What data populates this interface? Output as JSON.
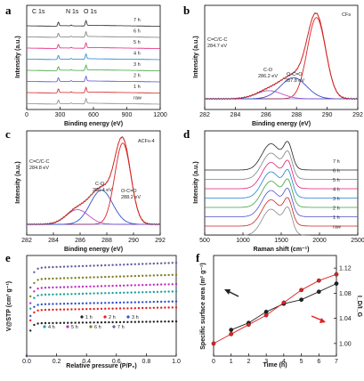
{
  "chart_data": [
    {
      "panel": "a",
      "type": "line",
      "xlabel": "Binding energy (eV)",
      "ylabel": "Intensity (a.u.)",
      "xlim": [
        0,
        1200
      ],
      "xticks": [
        "0",
        "300",
        "600",
        "900",
        "1200"
      ],
      "peak_labels": [
        "C 1s",
        "N 1s",
        "O 1s"
      ],
      "peaks_eV": [
        284.8,
        400,
        532
      ],
      "series_names": [
        "7 h",
        "6 h",
        "5 h",
        "4 h",
        "3 h",
        "2 h",
        "1 h",
        "raw"
      ],
      "colors": [
        "#222222",
        "#7a7a7a",
        "#e0207a",
        "#2080d0",
        "#40a040",
        "#5050d0",
        "#d02020",
        "#888888"
      ]
    },
    {
      "panel": "b",
      "type": "line",
      "title": "CFs",
      "xlabel": "Binding energy (eV)",
      "ylabel": "Intensity (a.u.)",
      "xlim": [
        292,
        282
      ],
      "xticks": [
        "282",
        "284",
        "286",
        "288",
        "290",
        "292"
      ],
      "components": [
        {
          "name": "C=C/C-C",
          "center_eV": 284.7,
          "label": "284.7 eV",
          "amplitude": 1.0,
          "color": "#e02020"
        },
        {
          "name": "C-O",
          "center_eV": 286.2,
          "label": "286.2 eV",
          "amplitude": 0.26,
          "color": "#3050d0"
        },
        {
          "name": "O-C=O",
          "center_eV": 287.8,
          "label": "287.8 eV",
          "amplitude": 0.1,
          "color": "#c050c0"
        }
      ]
    },
    {
      "panel": "c",
      "type": "line",
      "title": "ACFs-4",
      "xlabel": "Binding energy (eV)",
      "ylabel": "Intensity (a.u.)",
      "xlim": [
        292,
        282
      ],
      "xticks": [
        "282",
        "284",
        "286",
        "288",
        "290",
        "292"
      ],
      "components": [
        {
          "name": "C=C/C-C",
          "center_eV": 284.8,
          "label": "284.8 eV",
          "amplitude": 1.0,
          "color": "#e02020"
        },
        {
          "name": "C-O",
          "center_eV": 286.4,
          "label": "286.4 eV",
          "amplitude": 0.42,
          "color": "#3050d0"
        },
        {
          "name": "O-C=O",
          "center_eV": 288.2,
          "label": "288.2 eV",
          "amplitude": 0.18,
          "color": "#c050c0"
        }
      ]
    },
    {
      "panel": "d",
      "type": "line",
      "xlabel": "Raman shift (cm⁻¹)",
      "ylabel": "Intensity (a.u.)",
      "xlim": [
        500,
        2500
      ],
      "xticks": [
        "500",
        "1000",
        "1500",
        "2000",
        "2500"
      ],
      "D_band": 1350,
      "G_band": 1590,
      "series_names": [
        "7 h",
        "6 h",
        "5 h",
        "4 h",
        "3 h",
        "2 h",
        "1 h",
        "raw"
      ],
      "colors": [
        "#222222",
        "#808080",
        "#e0207a",
        "#2080d0",
        "#40a040",
        "#5050d0",
        "#d02020",
        "#888888"
      ]
    },
    {
      "panel": "e",
      "type": "scatter",
      "xlabel": "Relative pressure (P/P₀)",
      "ylabel": "V@STP (cm³ g⁻¹)",
      "xlim": [
        0,
        1.0
      ],
      "xticks": [
        "0.0",
        "0.2",
        "0.4",
        "0.6",
        "0.8",
        "1.0"
      ],
      "series": [
        {
          "name": "1 h",
          "plateau": 52,
          "color": "#222222"
        },
        {
          "name": "2 h",
          "plateau": 73,
          "color": "#e02020"
        },
        {
          "name": "3 h",
          "plateau": 82,
          "color": "#3050d0"
        },
        {
          "name": "4 h",
          "plateau": 97,
          "color": "#20a0a0"
        },
        {
          "name": "5 h",
          "plateau": 108,
          "color": "#c030c0"
        },
        {
          "name": "6 h",
          "plateau": 122,
          "color": "#808020"
        },
        {
          "name": "7 h",
          "plateau": 140,
          "color": "#6060a0"
        }
      ],
      "legend": [
        "1 h",
        "2 h",
        "3 h",
        "4 h",
        "5 h",
        "6 h",
        "7 h"
      ]
    },
    {
      "panel": "f",
      "type": "line",
      "xlabel": "Time (h)",
      "ylabel": "Specific surface area (m² g⁻¹)",
      "y2label": "I_D/I_G",
      "x": [
        0,
        1,
        2,
        3,
        4,
        5,
        6,
        7
      ],
      "xticks": [
        "0",
        "1",
        "2",
        "3",
        "4",
        "5",
        "6",
        "7"
      ],
      "y2lim": [
        0.98,
        1.14
      ],
      "y2ticks": [
        "1.00",
        "1.04",
        "1.08",
        "1.12"
      ],
      "series": [
        {
          "name": "specific surface area",
          "axis": "left",
          "color": "#222222",
          "x": [
            1,
            2,
            3,
            4,
            5,
            6,
            7
          ],
          "values": [
            0.26,
            0.33,
            0.44,
            0.52,
            0.56,
            0.64,
            0.72
          ]
        },
        {
          "name": "I_D/I_G",
          "axis": "right",
          "color": "#e02020",
          "x": [
            0,
            1,
            2,
            3,
            4,
            5,
            6,
            7
          ],
          "values": [
            1.0,
            1.015,
            1.03,
            1.045,
            1.065,
            1.085,
            1.1,
            1.11
          ]
        }
      ]
    }
  ]
}
